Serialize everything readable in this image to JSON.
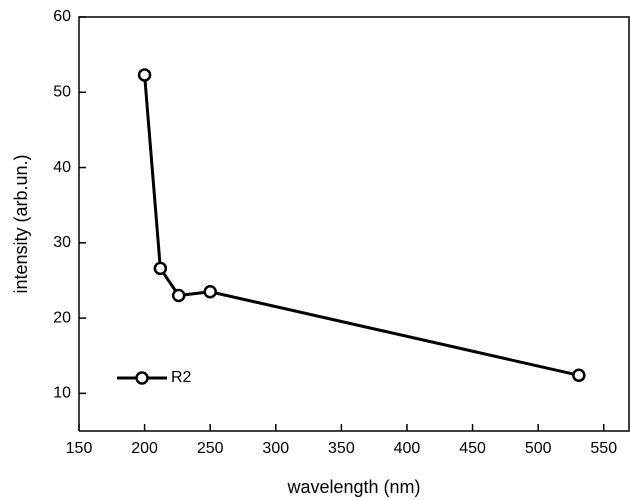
{
  "chart_data": {
    "type": "line",
    "x_label": "wavelength (nm)",
    "y_label": "intensity (arb.un.)",
    "xlim": [
      150,
      570
    ],
    "ylim": [
      5,
      60
    ],
    "xticks": [
      150,
      200,
      250,
      300,
      350,
      400,
      450,
      500,
      550
    ],
    "yticks": [
      10,
      20,
      30,
      40,
      50,
      60
    ],
    "legend": "lower left",
    "series": [
      {
        "name": "R2",
        "color": "#000000",
        "x": [
          200,
          212,
          226,
          250,
          531
        ],
        "values": [
          52.3,
          26.6,
          23.0,
          23.5,
          12.4
        ]
      }
    ]
  }
}
